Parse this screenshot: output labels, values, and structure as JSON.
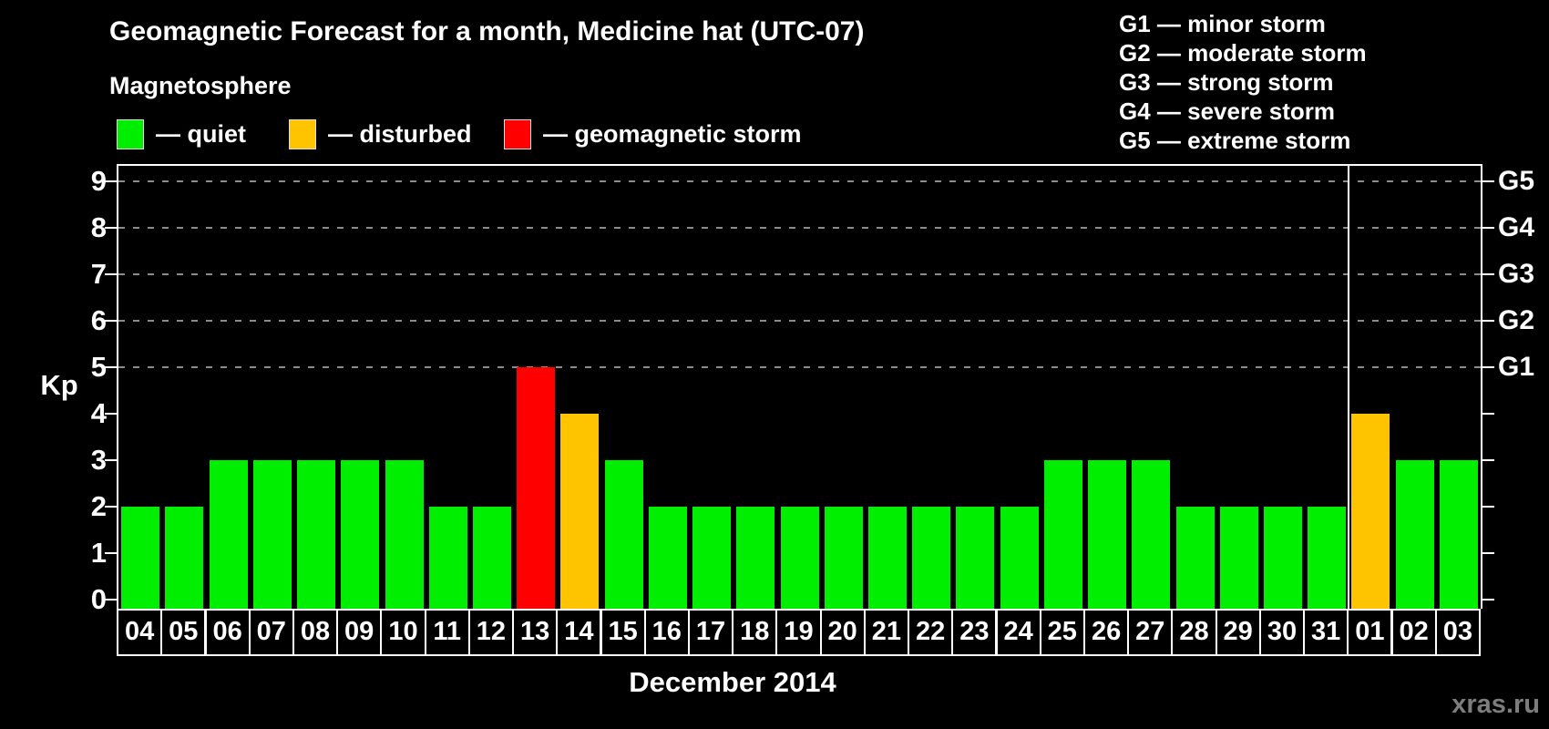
{
  "title": "Geomagnetic Forecast for a month, Medicine hat (UTC-07)",
  "legend": {
    "title": "Magnetosphere",
    "items": [
      {
        "label": "— quiet",
        "status": "quiet"
      },
      {
        "label": "— disturbed",
        "status": "disturbed"
      },
      {
        "label": "— geomagnetic storm",
        "status": "storm"
      }
    ]
  },
  "g_legend": {
    "items": [
      "G1 — minor storm",
      "G2 — moderate storm",
      "G3 — strong storm",
      "G4 — severe storm",
      "G5 — extreme storm"
    ]
  },
  "watermark": "xras.ru",
  "colors": {
    "quiet": "#00ee00",
    "disturbed": "#ffc400",
    "storm": "#ff0000",
    "grid": "#8c8c8c",
    "axis": "#ffffff",
    "watermark": "#7d7d7d",
    "background": "#000000"
  },
  "chart_data": {
    "type": "bar",
    "title": "Geomagnetic Forecast for a month, Medicine hat (UTC-07)",
    "xlabel": "December 2014",
    "ylabel": "Kp",
    "ylim": [
      0,
      9
    ],
    "yticks": [
      0,
      1,
      2,
      3,
      4,
      5,
      6,
      7,
      8,
      9
    ],
    "gridline_levels": [
      5,
      6,
      7,
      8,
      9
    ],
    "grid": "dashed horizontal lines at Kp 5-9 only",
    "legend_position": "top",
    "categories": [
      "04",
      "05",
      "06",
      "07",
      "08",
      "09",
      "10",
      "11",
      "12",
      "13",
      "14",
      "15",
      "16",
      "17",
      "18",
      "19",
      "20",
      "21",
      "22",
      "23",
      "24",
      "25",
      "26",
      "27",
      "28",
      "29",
      "30",
      "31",
      "01",
      "02",
      "03"
    ],
    "values": [
      2,
      2,
      3,
      3,
      3,
      3,
      3,
      2,
      2,
      5,
      4,
      3,
      2,
      2,
      2,
      2,
      2,
      2,
      2,
      2,
      2,
      3,
      3,
      3,
      2,
      2,
      2,
      2,
      4,
      3,
      3
    ],
    "statuses": [
      "quiet",
      "quiet",
      "quiet",
      "quiet",
      "quiet",
      "quiet",
      "quiet",
      "quiet",
      "quiet",
      "storm",
      "disturbed",
      "quiet",
      "quiet",
      "quiet",
      "quiet",
      "quiet",
      "quiet",
      "quiet",
      "quiet",
      "quiet",
      "quiet",
      "quiet",
      "quiet",
      "quiet",
      "quiet",
      "quiet",
      "quiet",
      "quiet",
      "disturbed",
      "quiet",
      "quiet"
    ],
    "right_axis": [
      {
        "label": "G1",
        "level": 5
      },
      {
        "label": "G2",
        "level": 6
      },
      {
        "label": "G3",
        "level": 7
      },
      {
        "label": "G4",
        "level": 8
      },
      {
        "label": "G5",
        "level": 9
      }
    ],
    "month_separator_after_index": 27
  }
}
